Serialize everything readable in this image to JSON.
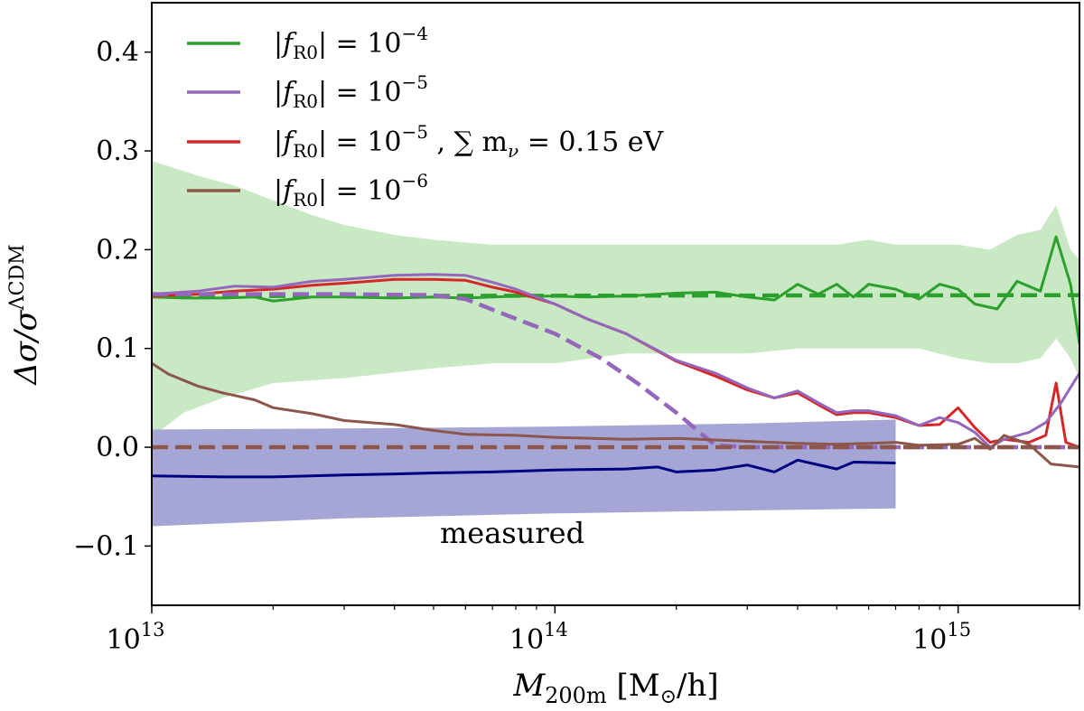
{
  "colors": {
    "green": "#2ca02c",
    "purple": "#9467bd",
    "red": "#d62728",
    "brown": "#8c564b",
    "navy": "#000080",
    "green_band": "#c9e8c4",
    "blue_band": "#a6a6d6"
  },
  "chart_data": {
    "type": "line",
    "xscale": "log",
    "xlim": [
      10000000000000.0,
      2000000000000000.0
    ],
    "ylim": [
      -0.16,
      0.45
    ],
    "xlabel_main": "M",
    "xlabel_sub": "200m",
    "xlabel_rest": " [M",
    "xlabel_sun": "⊙",
    "xlabel_end": "/h]",
    "ylabel_main": "Δσ/σ",
    "ylabel_sup": "ΛCDM",
    "xticks": [
      {
        "value": 10000000000000.0,
        "base": "10",
        "exp": "13"
      },
      {
        "value": 100000000000000.0,
        "base": "10",
        "exp": "14"
      },
      {
        "value": 1000000000000000.0,
        "base": "10",
        "exp": "15"
      }
    ],
    "yticks": [
      {
        "value": -0.1,
        "label": "−0.1"
      },
      {
        "value": 0.0,
        "label": "0.0"
      },
      {
        "value": 0.1,
        "label": "0.1"
      },
      {
        "value": 0.2,
        "label": "0.2"
      },
      {
        "value": 0.3,
        "label": "0.3"
      },
      {
        "value": 0.4,
        "label": "0.4"
      }
    ],
    "legend_position": "top-left",
    "legend": [
      {
        "prefix": "|f",
        "sub": "R0",
        "mid": "| = 10",
        "sup": "−4",
        "suffix": "",
        "color": "green"
      },
      {
        "prefix": "|f",
        "sub": "R0",
        "mid": "| = 10",
        "sup": "−5",
        "suffix": "",
        "color": "purple"
      },
      {
        "prefix": "|f",
        "sub": "R0",
        "mid": "| = 10",
        "sup": "−5",
        "suffix": " , ∑ m",
        "suffix_sub": "ν",
        "suffix_end": " = 0.15 eV",
        "color": "red"
      },
      {
        "prefix": "|f",
        "sub": "R0",
        "mid": "| = 10",
        "sup": "−6",
        "suffix": "",
        "color": "brown"
      }
    ],
    "annotation": "measured",
    "bands": [
      {
        "name": "green-band",
        "color": "green_band",
        "upper": [
          [
            10000000000000.0,
            0.29
          ],
          [
            13000000000000.0,
            0.275
          ],
          [
            16000000000000.0,
            0.265
          ],
          [
            20000000000000.0,
            0.25
          ],
          [
            25000000000000.0,
            0.235
          ],
          [
            30000000000000.0,
            0.225
          ],
          [
            40000000000000.0,
            0.215
          ],
          [
            50000000000000.0,
            0.21
          ],
          [
            70000000000000.0,
            0.205
          ],
          [
            100000000000000.0,
            0.205
          ],
          [
            150000000000000.0,
            0.205
          ],
          [
            200000000000000.0,
            0.205
          ],
          [
            300000000000000.0,
            0.205
          ],
          [
            400000000000000.0,
            0.205
          ],
          [
            500000000000000.0,
            0.205
          ],
          [
            600000000000000.0,
            0.21
          ],
          [
            700000000000000.0,
            0.205
          ],
          [
            800000000000000.0,
            0.205
          ],
          [
            1000000000000000.0,
            0.205
          ],
          [
            1200000000000000.0,
            0.2
          ],
          [
            1400000000000000.0,
            0.215
          ],
          [
            1600000000000000.0,
            0.22
          ],
          [
            1750000000000000.0,
            0.245
          ],
          [
            1900000000000000.0,
            0.2
          ],
          [
            2000000000000000.0,
            0.19
          ]
        ],
        "lower": [
          [
            2000000000000000.0,
            0.07
          ],
          [
            1900000000000000.0,
            0.09
          ],
          [
            1750000000000000.0,
            0.11
          ],
          [
            1600000000000000.0,
            0.09
          ],
          [
            1400000000000000.0,
            0.085
          ],
          [
            1200000000000000.0,
            0.085
          ],
          [
            1000000000000000.0,
            0.09
          ],
          [
            800000000000000.0,
            0.1
          ],
          [
            600000000000000.0,
            0.1
          ],
          [
            400000000000000.0,
            0.1
          ],
          [
            300000000000000.0,
            0.095
          ],
          [
            200000000000000.0,
            0.095
          ],
          [
            150000000000000.0,
            0.095
          ],
          [
            100000000000000.0,
            0.085
          ],
          [
            70000000000000.0,
            0.085
          ],
          [
            50000000000000.0,
            0.08
          ],
          [
            30000000000000.0,
            0.07
          ],
          [
            20000000000000.0,
            0.065
          ],
          [
            15000000000000.0,
            0.05
          ],
          [
            12000000000000.0,
            0.035
          ],
          [
            10000000000000.0,
            0.01
          ]
        ]
      },
      {
        "name": "blue-band",
        "color": "blue_band",
        "upper": [
          [
            10000000000000.0,
            0.018
          ],
          [
            30000000000000.0,
            0.019
          ],
          [
            100000000000000.0,
            0.021
          ],
          [
            300000000000000.0,
            0.024
          ],
          [
            700000000000000.0,
            0.028
          ]
        ],
        "lower": [
          [
            700000000000000.0,
            -0.062
          ],
          [
            300000000000000.0,
            -0.064
          ],
          [
            100000000000000.0,
            -0.067
          ],
          [
            30000000000000.0,
            -0.072
          ],
          [
            10000000000000.0,
            -0.08
          ]
        ]
      }
    ],
    "series": [
      {
        "color": "green",
        "style": "solid",
        "points": [
          [
            10000000000000.0,
            0.152
          ],
          [
            12000000000000.0,
            0.151
          ],
          [
            15000000000000.0,
            0.151
          ],
          [
            18000000000000.0,
            0.152
          ],
          [
            20000000000000.0,
            0.148
          ],
          [
            25000000000000.0,
            0.152
          ],
          [
            30000000000000.0,
            0.152
          ],
          [
            40000000000000.0,
            0.151
          ],
          [
            50000000000000.0,
            0.152
          ],
          [
            60000000000000.0,
            0.151
          ],
          [
            70000000000000.0,
            0.152
          ],
          [
            80000000000000.0,
            0.153
          ],
          [
            100000000000000.0,
            0.153
          ],
          [
            120000000000000.0,
            0.152
          ],
          [
            150000000000000.0,
            0.153
          ],
          [
            200000000000000.0,
            0.156
          ],
          [
            250000000000000.0,
            0.157
          ],
          [
            300000000000000.0,
            0.152
          ],
          [
            350000000000000.0,
            0.149
          ],
          [
            400000000000000.0,
            0.165
          ],
          [
            450000000000000.0,
            0.155
          ],
          [
            500000000000000.0,
            0.165
          ],
          [
            550000000000000.0,
            0.152
          ],
          [
            600000000000000.0,
            0.165
          ],
          [
            700000000000000.0,
            0.16
          ],
          [
            800000000000000.0,
            0.15
          ],
          [
            900000000000000.0,
            0.165
          ],
          [
            1000000000000000.0,
            0.16
          ],
          [
            1100000000000000.0,
            0.145
          ],
          [
            1250000000000000.0,
            0.14
          ],
          [
            1400000000000000.0,
            0.168
          ],
          [
            1600000000000000.0,
            0.158
          ],
          [
            1750000000000000.0,
            0.213
          ],
          [
            1900000000000000.0,
            0.165
          ],
          [
            2000000000000000.0,
            0.105
          ]
        ]
      },
      {
        "color": "green",
        "style": "dashed",
        "points": [
          [
            10000000000000.0,
            0.153
          ],
          [
            2000000000000000.0,
            0.154
          ]
        ]
      },
      {
        "color": "red",
        "style": "solid",
        "points": [
          [
            10000000000000.0,
            0.153
          ],
          [
            13000000000000.0,
            0.155
          ],
          [
            16000000000000.0,
            0.158
          ],
          [
            20000000000000.0,
            0.16
          ],
          [
            25000000000000.0,
            0.164
          ],
          [
            30000000000000.0,
            0.166
          ],
          [
            40000000000000.0,
            0.17
          ],
          [
            50000000000000.0,
            0.17
          ],
          [
            60000000000000.0,
            0.169
          ],
          [
            70000000000000.0,
            0.162
          ],
          [
            80000000000000.0,
            0.157
          ],
          [
            100000000000000.0,
            0.145
          ],
          [
            120000000000000.0,
            0.13
          ],
          [
            150000000000000.0,
            0.115
          ],
          [
            200000000000000.0,
            0.087
          ],
          [
            250000000000000.0,
            0.072
          ],
          [
            300000000000000.0,
            0.058
          ],
          [
            350000000000000.0,
            0.05
          ],
          [
            400000000000000.0,
            0.055
          ],
          [
            450000000000000.0,
            0.043
          ],
          [
            500000000000000.0,
            0.033
          ],
          [
            550000000000000.0,
            0.035
          ],
          [
            600000000000000.0,
            0.035
          ],
          [
            700000000000000.0,
            0.03
          ],
          [
            800000000000000.0,
            0.022
          ],
          [
            900000000000000.0,
            0.023
          ],
          [
            1000000000000000.0,
            0.04
          ],
          [
            1100000000000000.0,
            0.02
          ],
          [
            1200000000000000.0,
            0.005
          ],
          [
            1300000000000000.0,
            0.008
          ],
          [
            1500000000000000.0,
            0.005
          ],
          [
            1650000000000000.0,
            0.012
          ],
          [
            1750000000000000.0,
            0.065
          ],
          [
            1850000000000000.0,
            0.005
          ],
          [
            2000000000000000.0,
            0.0
          ]
        ]
      },
      {
        "color": "purple",
        "style": "solid",
        "points": [
          [
            10000000000000.0,
            0.155
          ],
          [
            13000000000000.0,
            0.158
          ],
          [
            16000000000000.0,
            0.163
          ],
          [
            20000000000000.0,
            0.162
          ],
          [
            25000000000000.0,
            0.168
          ],
          [
            30000000000000.0,
            0.17
          ],
          [
            40000000000000.0,
            0.174
          ],
          [
            50000000000000.0,
            0.175
          ],
          [
            60000000000000.0,
            0.174
          ],
          [
            70000000000000.0,
            0.167
          ],
          [
            80000000000000.0,
            0.16
          ],
          [
            100000000000000.0,
            0.145
          ],
          [
            120000000000000.0,
            0.13
          ],
          [
            150000000000000.0,
            0.115
          ],
          [
            200000000000000.0,
            0.088
          ],
          [
            250000000000000.0,
            0.075
          ],
          [
            300000000000000.0,
            0.06
          ],
          [
            350000000000000.0,
            0.05
          ],
          [
            400000000000000.0,
            0.057
          ],
          [
            450000000000000.0,
            0.045
          ],
          [
            500000000000000.0,
            0.035
          ],
          [
            550000000000000.0,
            0.037
          ],
          [
            600000000000000.0,
            0.037
          ],
          [
            700000000000000.0,
            0.032
          ],
          [
            800000000000000.0,
            0.022
          ],
          [
            900000000000000.0,
            0.03
          ],
          [
            1000000000000000.0,
            0.025
          ],
          [
            1100000000000000.0,
            0.015
          ],
          [
            1200000000000000.0,
            0.0
          ],
          [
            1300000000000000.0,
            0.008
          ],
          [
            1500000000000000.0,
            0.015
          ],
          [
            1650000000000000.0,
            0.025
          ],
          [
            1800000000000000.0,
            0.045
          ],
          [
            2000000000000000.0,
            0.075
          ]
        ]
      },
      {
        "color": "purple",
        "style": "dashed",
        "points": [
          [
            10000000000000.0,
            0.155
          ],
          [
            30000000000000.0,
            0.155
          ],
          [
            50000000000000.0,
            0.154
          ],
          [
            60000000000000.0,
            0.15
          ],
          [
            80000000000000.0,
            0.13
          ],
          [
            100000000000000.0,
            0.115
          ],
          [
            130000000000000.0,
            0.09
          ],
          [
            160000000000000.0,
            0.065
          ],
          [
            200000000000000.0,
            0.035
          ],
          [
            250000000000000.0,
            0.002
          ],
          [
            300000000000000.0,
            0.0
          ],
          [
            2000000000000000.0,
            0.0
          ]
        ]
      },
      {
        "color": "brown",
        "style": "solid",
        "points": [
          [
            10000000000000.0,
            0.085
          ],
          [
            11000000000000.0,
            0.074
          ],
          [
            13000000000000.0,
            0.062
          ],
          [
            15000000000000.0,
            0.055
          ],
          [
            18000000000000.0,
            0.048
          ],
          [
            20000000000000.0,
            0.04
          ],
          [
            25000000000000.0,
            0.034
          ],
          [
            30000000000000.0,
            0.027
          ],
          [
            40000000000000.0,
            0.023
          ],
          [
            50000000000000.0,
            0.017
          ],
          [
            60000000000000.0,
            0.013
          ],
          [
            80000000000000.0,
            0.012
          ],
          [
            100000000000000.0,
            0.01
          ],
          [
            150000000000000.0,
            0.008
          ],
          [
            200000000000000.0,
            0.009
          ],
          [
            300000000000000.0,
            0.006
          ],
          [
            400000000000000.0,
            0.004
          ],
          [
            500000000000000.0,
            0.003
          ],
          [
            600000000000000.0,
            0.004
          ],
          [
            700000000000000.0,
            0.005
          ],
          [
            800000000000000.0,
            0.002
          ],
          [
            1000000000000000.0,
            0.003
          ],
          [
            1100000000000000.0,
            0.009
          ],
          [
            1200000000000000.0,
            -0.002
          ],
          [
            1300000000000000.0,
            0.012
          ],
          [
            1500000000000000.0,
            0.003
          ],
          [
            1700000000000000.0,
            -0.017
          ],
          [
            2000000000000000.0,
            -0.02
          ]
        ]
      },
      {
        "color": "brown",
        "style": "dashed",
        "points": [
          [
            10000000000000.0,
            0.0
          ],
          [
            2000000000000000.0,
            0.0
          ]
        ]
      },
      {
        "color": "navy",
        "style": "solid",
        "points": [
          [
            10000000000000.0,
            -0.029
          ],
          [
            15000000000000.0,
            -0.03
          ],
          [
            20000000000000.0,
            -0.03
          ],
          [
            30000000000000.0,
            -0.028
          ],
          [
            40000000000000.0,
            -0.027
          ],
          [
            50000000000000.0,
            -0.026
          ],
          [
            70000000000000.0,
            -0.025
          ],
          [
            100000000000000.0,
            -0.023
          ],
          [
            150000000000000.0,
            -0.022
          ],
          [
            180000000000000.0,
            -0.02
          ],
          [
            200000000000000.0,
            -0.025
          ],
          [
            250000000000000.0,
            -0.023
          ],
          [
            300000000000000.0,
            -0.018
          ],
          [
            350000000000000.0,
            -0.025
          ],
          [
            400000000000000.0,
            -0.013
          ],
          [
            500000000000000.0,
            -0.022
          ],
          [
            550000000000000.0,
            -0.015
          ],
          [
            700000000000000.0,
            -0.016
          ]
        ]
      }
    ]
  }
}
